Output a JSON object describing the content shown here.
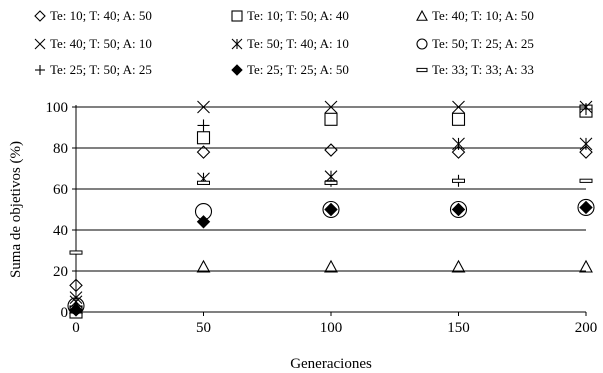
{
  "chart_data": {
    "type": "scatter",
    "xlabel": "Generaciones",
    "ylabel": "Suma de objetivos (%)",
    "xlim": [
      0,
      200
    ],
    "ylim": [
      0,
      100
    ],
    "xticks": [
      0,
      50,
      100,
      150,
      200
    ],
    "yticks": [
      0,
      20,
      40,
      60,
      80,
      100
    ],
    "grid": "horizontal",
    "legend_position": "top",
    "series": [
      {
        "name": "Te: 10; T: 40; A: 50",
        "marker": "diamond-open",
        "x": [
          0,
          50,
          100,
          150,
          200
        ],
        "y": [
          13,
          78,
          79,
          78,
          78
        ]
      },
      {
        "name": "Te: 10; T: 50; A: 40",
        "marker": "square-open",
        "x": [
          0,
          50,
          100,
          150,
          200
        ],
        "y": [
          0,
          85,
          94,
          94,
          98
        ]
      },
      {
        "name": "Te: 40; T: 10; A: 50",
        "marker": "triangle-open",
        "x": [
          0,
          50,
          100,
          150,
          200
        ],
        "y": [
          2,
          22,
          22,
          22,
          22
        ]
      },
      {
        "name": "Te: 40; T: 50; A: 10",
        "marker": "x",
        "x": [
          0,
          50,
          100,
          150,
          200
        ],
        "y": [
          7,
          100,
          100,
          100,
          100
        ]
      },
      {
        "name": "Te: 50; T: 40; A: 10",
        "marker": "asterisk",
        "x": [
          0,
          50,
          100,
          150,
          200
        ],
        "y": [
          5,
          65,
          66,
          82,
          82
        ]
      },
      {
        "name": "Te: 50; T: 25; A: 25",
        "marker": "circle-open",
        "x": [
          0,
          50,
          100,
          150,
          200
        ],
        "y": [
          3,
          49,
          50,
          50,
          51
        ]
      },
      {
        "name": "Te: 25; T: 50; A: 25",
        "marker": "plus",
        "x": [
          0,
          50,
          100,
          150,
          200
        ],
        "y": [
          1,
          91,
          64,
          64,
          99
        ]
      },
      {
        "name": "Te: 25; T: 25; A: 50",
        "marker": "diamond-filled",
        "x": [
          0,
          50,
          100,
          150,
          200
        ],
        "y": [
          1,
          44,
          50,
          50,
          51
        ]
      },
      {
        "name": "Te: 33; T: 33; A: 33",
        "marker": "dash",
        "x": [
          0,
          50,
          100,
          150,
          200
        ],
        "y": [
          29,
          63,
          63,
          64,
          64
        ]
      }
    ]
  }
}
